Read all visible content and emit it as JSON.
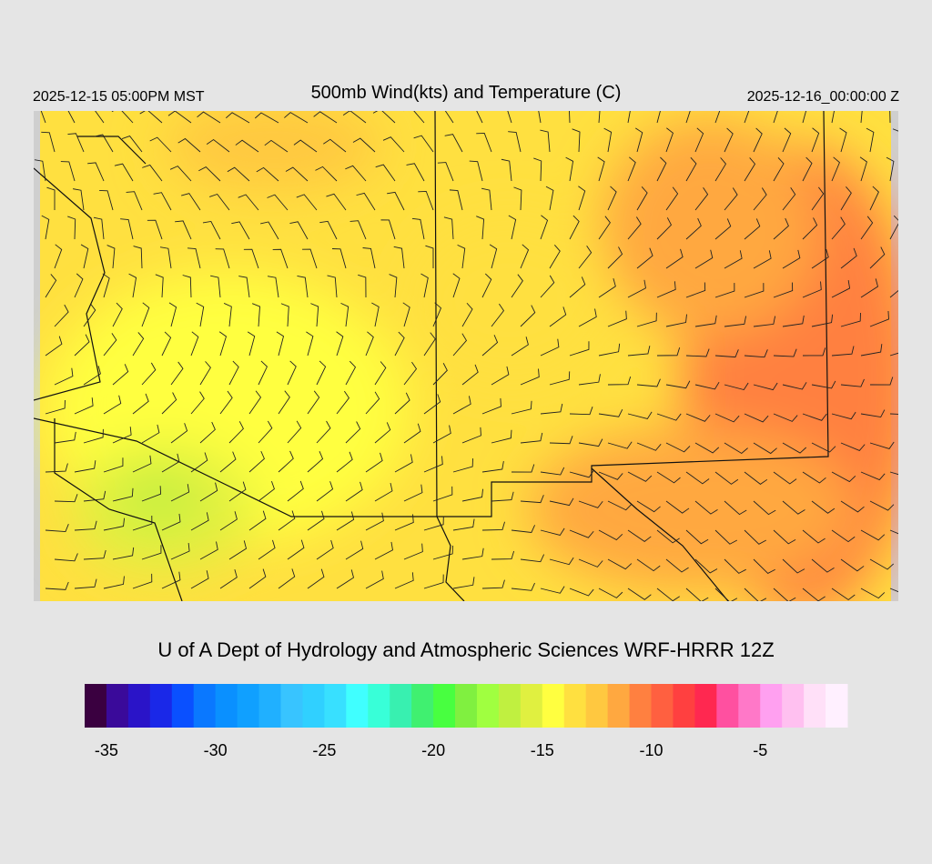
{
  "header": {
    "left": "2025-12-15 05:00PM MST",
    "title": "500mb Wind(kts) and Temperature (C)",
    "right": "2025-12-16_00:00:00 Z"
  },
  "footer": "U of A Dept of Hydrology and Atmospheric Sciences WRF-HRRR 12Z",
  "colorbar": {
    "xlim": [
      -36,
      -1
    ],
    "ticks": [
      -35,
      -30,
      -25,
      -20,
      -15,
      -10,
      -5
    ],
    "colors": [
      "#3a0040",
      "#3a0a9a",
      "#2a14c8",
      "#1a28e8",
      "#0a50ff",
      "#0a78ff",
      "#0a90ff",
      "#10a0ff",
      "#20b0ff",
      "#38c4ff",
      "#30d0ff",
      "#38e0ff",
      "#40ffff",
      "#38ffd8",
      "#38f0b0",
      "#40f070",
      "#48ff40",
      "#80f040",
      "#a0ff40",
      "#c0f040",
      "#e0f040",
      "#ffff40",
      "#ffe040",
      "#ffc840",
      "#ffa840",
      "#ff8040",
      "#ff6040",
      "#ff4040",
      "#ff2850",
      "#ff50a0",
      "#ff78c8",
      "#ffa0f0",
      "#ffc0f0",
      "#ffe0f8",
      "#fff0ff"
    ]
  }
}
